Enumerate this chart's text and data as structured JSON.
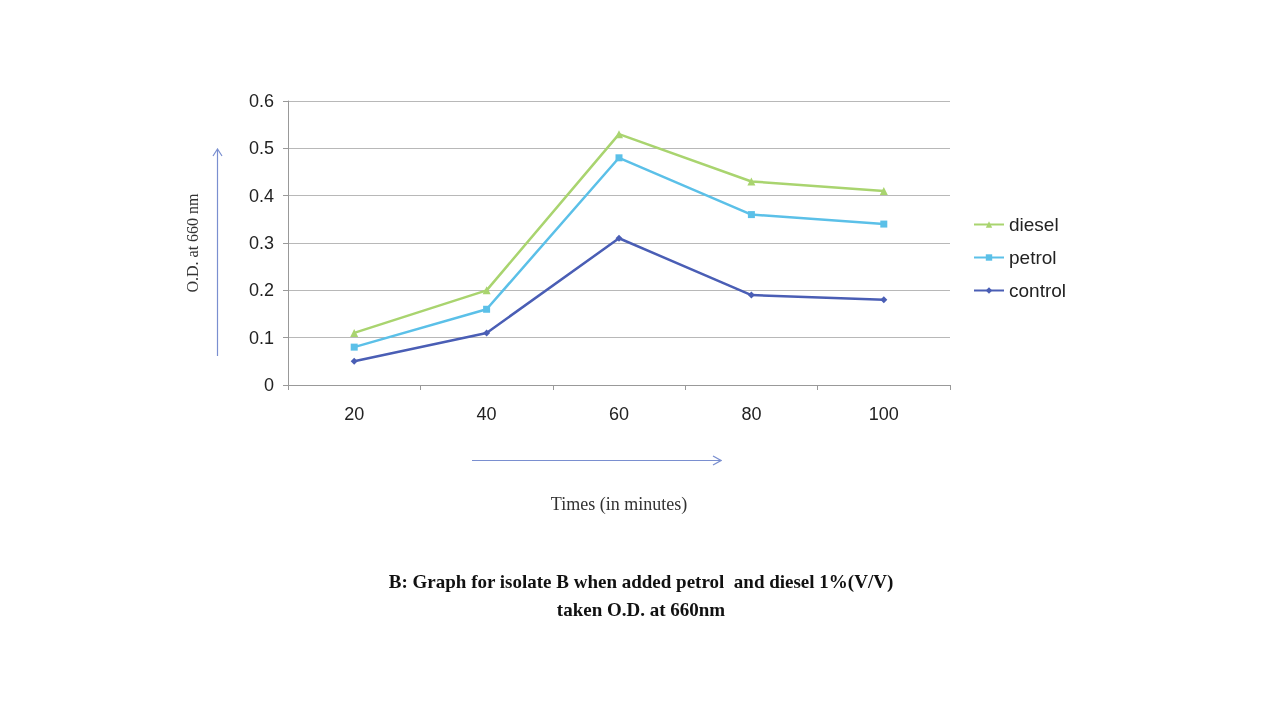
{
  "chart_data": {
    "type": "line",
    "title": "B: Graph for isolate B when added petrol  and diesel 1%(V/V)\ntaken O.D. at 660nm",
    "xlabel": "Times (in minutes)",
    "ylabel": "O.D. at 660 nm",
    "categories": [
      "20",
      "40",
      "60",
      "80",
      "100"
    ],
    "series": [
      {
        "name": "diesel",
        "color": "#a9d46f",
        "marker": "triangle",
        "values": [
          0.11,
          0.2,
          0.53,
          0.43,
          0.41
        ]
      },
      {
        "name": "petrol",
        "color": "#5bc0e8",
        "marker": "square",
        "values": [
          0.08,
          0.16,
          0.48,
          0.36,
          0.34
        ]
      },
      {
        "name": "control",
        "color": "#4a5eb5",
        "marker": "diamond",
        "values": [
          0.05,
          0.11,
          0.31,
          0.19,
          0.18
        ]
      }
    ],
    "ylim": [
      0,
      0.6
    ],
    "yticks": [
      0,
      0.1,
      0.2,
      0.3,
      0.4,
      0.5,
      0.6
    ],
    "grid": "y",
    "legend": "right"
  }
}
